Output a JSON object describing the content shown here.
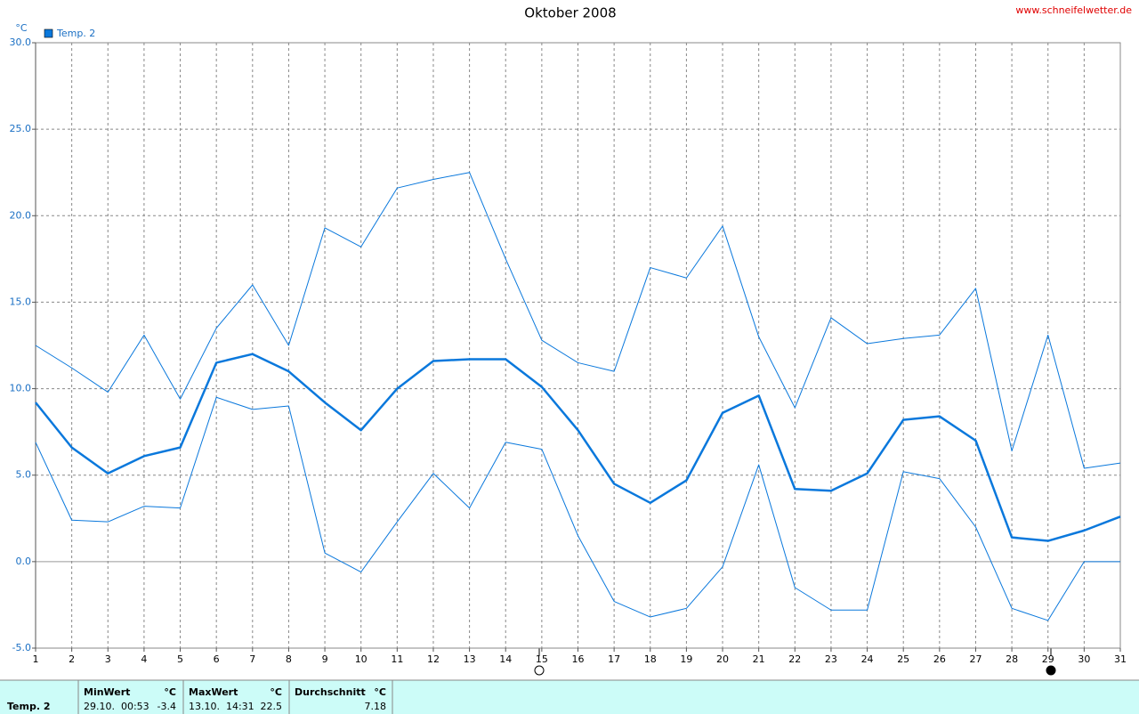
{
  "chart_data": {
    "type": "line",
    "title": "Oktober 2008",
    "source": "www.schneifelwetter.de",
    "y_unit": "°C",
    "x": [
      1,
      2,
      3,
      4,
      5,
      6,
      7,
      8,
      9,
      10,
      11,
      12,
      13,
      14,
      15,
      16,
      17,
      18,
      19,
      20,
      21,
      22,
      23,
      24,
      25,
      26,
      27,
      28,
      29,
      30,
      31
    ],
    "xlim": [
      1,
      31
    ],
    "xticks": [
      1,
      2,
      3,
      4,
      5,
      6,
      7,
      8,
      9,
      10,
      11,
      12,
      13,
      14,
      15,
      16,
      17,
      18,
      19,
      20,
      21,
      22,
      23,
      24,
      25,
      26,
      27,
      28,
      29,
      30,
      31
    ],
    "ylim": [
      -5,
      30
    ],
    "yticks": [
      {
        "value": -5,
        "label": "-5.0"
      },
      {
        "value": 0,
        "label": "0.0"
      },
      {
        "value": 5,
        "label": "5.0"
      },
      {
        "value": 10,
        "label": "10.0"
      },
      {
        "value": 15,
        "label": "15.0"
      },
      {
        "value": 20,
        "label": "20.0"
      },
      {
        "value": 25,
        "label": "25.0"
      },
      {
        "value": 30,
        "label": "30.0"
      }
    ],
    "grid": true,
    "series": [
      {
        "name": "Temp. 2",
        "color": "#0a78dc",
        "values": [
          9.2,
          6.6,
          5.1,
          6.1,
          6.6,
          11.5,
          12.0,
          11.0,
          9.2,
          7.6,
          10.0,
          11.6,
          11.7,
          11.7,
          10.1,
          7.6,
          4.5,
          3.4,
          4.7,
          8.6,
          9.6,
          4.2,
          4.1,
          5.1,
          8.2,
          8.4,
          7.0,
          1.4,
          1.2,
          1.8,
          2.6
        ],
        "upper": [
          12.5,
          11.2,
          9.8,
          13.1,
          9.4,
          13.5,
          16.0,
          12.5,
          19.3,
          18.2,
          21.6,
          22.1,
          22.5,
          17.5,
          12.8,
          11.5,
          11.0,
          17.0,
          16.4,
          19.4,
          13.0,
          8.9,
          14.1,
          12.6,
          12.9,
          13.1,
          15.8,
          6.4,
          13.1,
          5.4,
          5.7
        ],
        "lower": [
          6.9,
          2.4,
          2.3,
          3.2,
          3.1,
          9.5,
          8.8,
          9.0,
          0.5,
          -0.6,
          2.3,
          5.1,
          3.1,
          6.9,
          6.5,
          1.5,
          -2.3,
          -3.2,
          -2.7,
          -0.3,
          5.6,
          -1.5,
          -2.8,
          -2.8,
          5.2,
          4.8,
          2.0,
          -2.7,
          -3.4,
          0.0,
          0.0
        ]
      }
    ]
  },
  "summary": {
    "row_label": "Temp. 2",
    "columns": [
      {
        "label": "MinWert",
        "unit": "°C",
        "time": "29.10.  00:53",
        "value": -3.4
      },
      {
        "label": "MaxWert",
        "unit": "°C",
        "time": "13.10.  14:31",
        "value": 22.5
      },
      {
        "label": "Durchschnitt",
        "unit": "°C",
        "value": 7.18
      }
    ]
  }
}
